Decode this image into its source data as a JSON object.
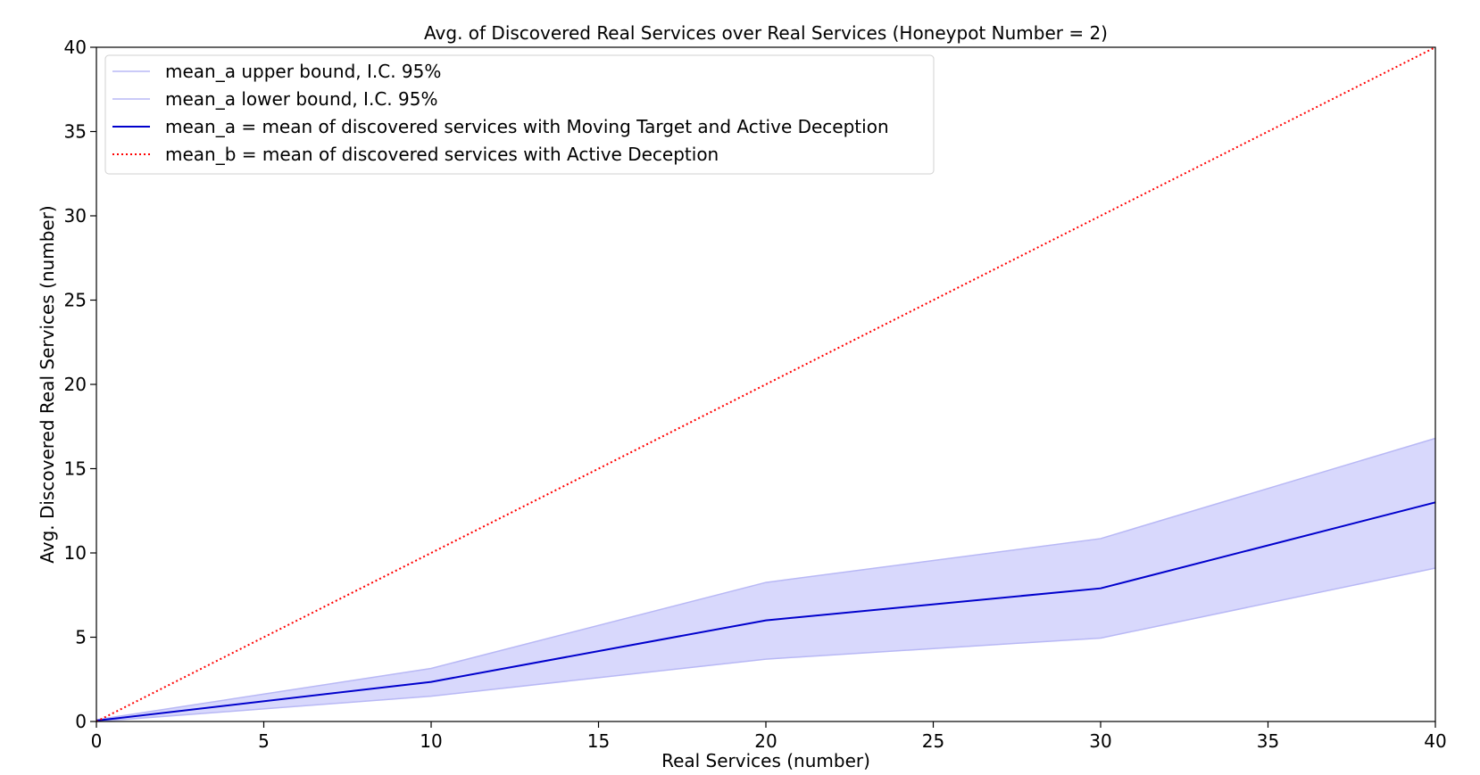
{
  "chart_data": {
    "type": "line",
    "title": "Avg. of Discovered Real Services over Real Services (Honeypot Number = 2)",
    "xlabel": "Real Services (number)",
    "ylabel": "Avg. Discovered Real Services (number)",
    "xlim": [
      0,
      40
    ],
    "ylim": [
      0,
      40
    ],
    "xticks": [
      "0",
      "5",
      "10",
      "15",
      "20",
      "25",
      "30",
      "35",
      "40"
    ],
    "yticks": [
      "0",
      "5",
      "10",
      "15",
      "20",
      "25",
      "30",
      "35",
      "40"
    ],
    "grid": false,
    "legend_position": "top-left",
    "x": [
      0,
      10,
      20,
      30,
      40
    ],
    "series": [
      {
        "name": "mean_a upper bound, I.C. 95%",
        "values": [
          0.1,
          3.15,
          8.25,
          10.85,
          16.8
        ],
        "color": "#b8b8f5",
        "style": "solid",
        "width": 1.5
      },
      {
        "name": "mean_a lower bound, I.C. 95%",
        "values": [
          0.0,
          1.5,
          3.7,
          4.95,
          9.1
        ],
        "color": "#b8b8f5",
        "style": "solid",
        "width": 1.5
      },
      {
        "name": "mean_a = mean of discovered services with Moving Target and Active Deception",
        "values": [
          0.05,
          2.35,
          6.0,
          7.9,
          13.0
        ],
        "color": "#0000cc",
        "style": "solid",
        "width": 2
      },
      {
        "name": "mean_b = mean of discovered services with Active Deception",
        "values": [
          0,
          10,
          20,
          30,
          40
        ],
        "color": "#ff0000",
        "style": "dotted",
        "width": 2
      }
    ],
    "band": {
      "between": [
        0,
        1
      ],
      "fill": "#d8d8fc"
    }
  }
}
